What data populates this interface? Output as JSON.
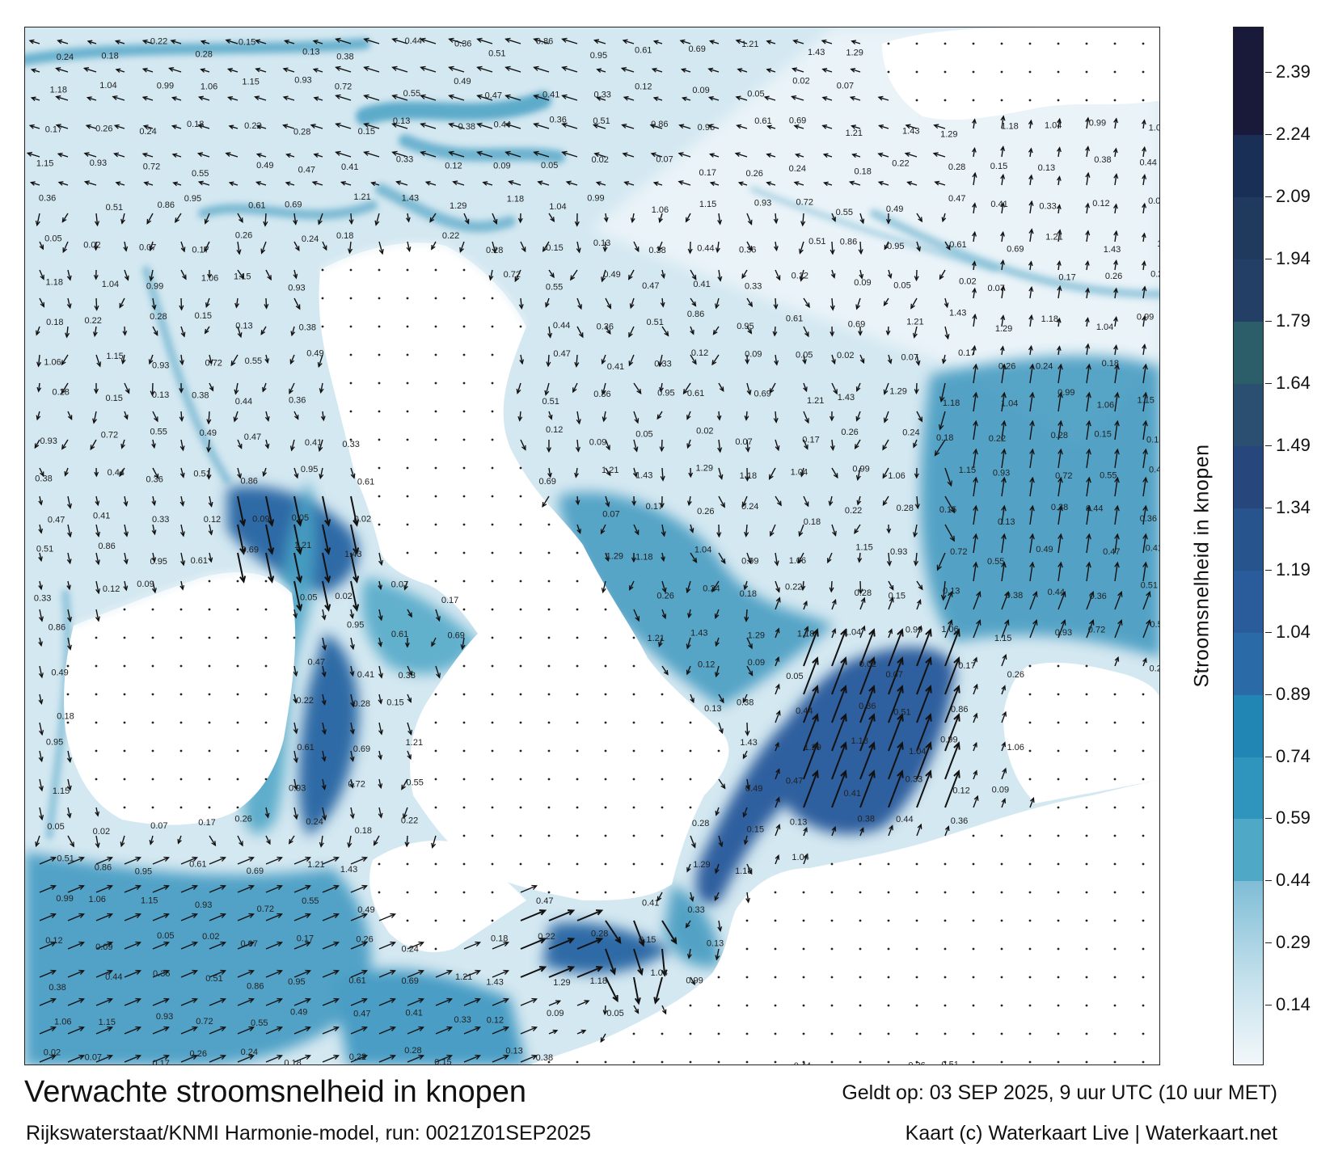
{
  "title": "Verwachte stroomsnelheid in knopen",
  "valid_time": "Geldt op: 03 SEP 2025, 9 uur UTC (10 uur MET)",
  "model": "Rijkswaterstaat/KNMI Harmonie-model, run: 0021Z01SEP2025",
  "credit": "Kaart (c) Waterkaart Live | Waterkaart.net",
  "colorbar": {
    "title": "Stroomsnelheid in knopen",
    "ticks": [
      "2.39",
      "2.24",
      "2.09",
      "1.94",
      "1.79",
      "1.64",
      "1.49",
      "1.34",
      "1.19",
      "1.04",
      "0.89",
      "0.74",
      "0.59",
      "0.44",
      "0.29",
      "0.14"
    ],
    "range": [
      0,
      2.5
    ],
    "colors": {
      "lowest": "#f2f7fa",
      "low": "#c5e1ec",
      "mid": "#4fa8c6",
      "teal": "#2186b4",
      "blue": "#2a5c9c",
      "dark_blue": "#26467c",
      "dark_teal": "#2c5e6a",
      "navy": "#1a2f56",
      "darkest": "#191a3a"
    }
  },
  "map": {
    "water_color": "#c9e2ee",
    "land_color": "#ffffff",
    "sample_values": [
      {
        "v": "0.24"
      },
      {
        "v": "0.18"
      },
      {
        "v": "0.22"
      },
      {
        "v": "0.28"
      },
      {
        "v": "0.15"
      },
      {
        "v": "0.13"
      },
      {
        "v": "0.38"
      },
      {
        "v": "0.44"
      },
      {
        "v": "0.36"
      },
      {
        "v": "0.51"
      },
      {
        "v": "0.86"
      },
      {
        "v": "0.95"
      },
      {
        "v": "0.61"
      },
      {
        "v": "0.69"
      },
      {
        "v": "1.21"
      },
      {
        "v": "1.43"
      },
      {
        "v": "1.29"
      },
      {
        "v": "1.18"
      },
      {
        "v": "1.04"
      },
      {
        "v": "0.99"
      },
      {
        "v": "1.06"
      },
      {
        "v": "1.15"
      },
      {
        "v": "0.93"
      },
      {
        "v": "0.72"
      },
      {
        "v": "0.55"
      },
      {
        "v": "0.49"
      },
      {
        "v": "0.47"
      },
      {
        "v": "0.41"
      },
      {
        "v": "0.33"
      },
      {
        "v": "0.12"
      },
      {
        "v": "0.09"
      },
      {
        "v": "0.05"
      },
      {
        "v": "0.02"
      },
      {
        "v": "0.07"
      },
      {
        "v": "0.17"
      },
      {
        "v": "0.26"
      }
    ]
  }
}
